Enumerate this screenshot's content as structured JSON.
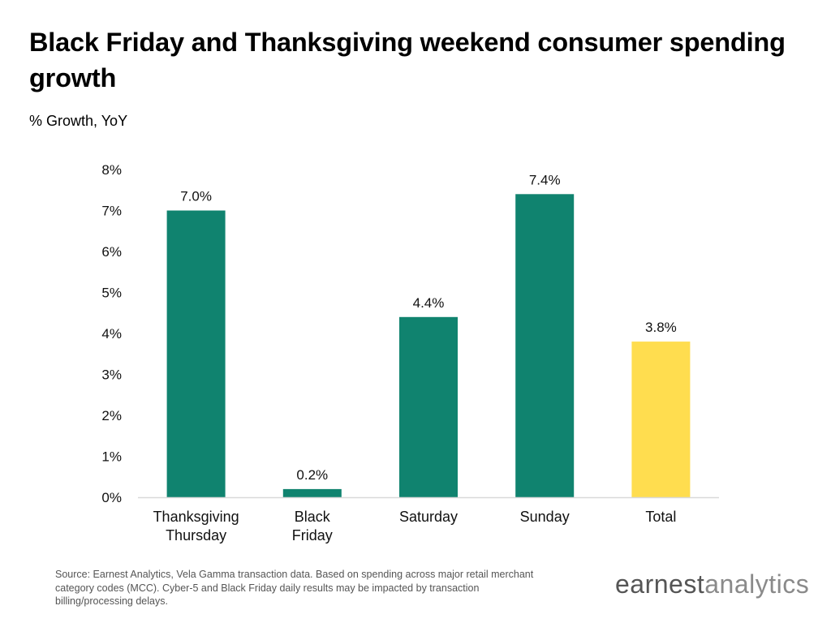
{
  "header": {
    "title": "Black Friday and Thanksgiving weekend consumer spending growth",
    "subtitle": "% Growth, YoY"
  },
  "chart_data": {
    "type": "bar",
    "title": "Black Friday and Thanksgiving weekend consumer spending growth",
    "ylabel": "% Growth, YoY",
    "xlabel": "",
    "categories": [
      "Thanksgiving Thursday",
      "Black Friday",
      "Saturday",
      "Sunday",
      "Total"
    ],
    "category_lines": [
      [
        "Thanksgiving",
        "Thursday"
      ],
      [
        "Black",
        "Friday"
      ],
      [
        "Saturday"
      ],
      [
        "Sunday"
      ],
      [
        "Total"
      ]
    ],
    "values": [
      7.0,
      0.2,
      4.4,
      7.4,
      3.8
    ],
    "value_labels": [
      "7.0%",
      "0.2%",
      "4.4%",
      "7.4%",
      "3.8%"
    ],
    "bar_colors": [
      "#10836f",
      "#10836f",
      "#10836f",
      "#10836f",
      "#ffdd4f"
    ],
    "ylim": [
      0,
      8
    ],
    "y_ticks": [
      0,
      1,
      2,
      3,
      4,
      5,
      6,
      7,
      8
    ],
    "y_tick_labels": [
      "0%",
      "1%",
      "2%",
      "3%",
      "4%",
      "5%",
      "6%",
      "7%",
      "8%"
    ],
    "grid": false,
    "legend": "none"
  },
  "footer": {
    "source": "Source: Earnest Analytics, Vela Gamma transaction data. Based on spending across major retail merchant category codes (MCC). Cyber-5 and Black Friday daily results may be impacted by transaction billing/processing delays.",
    "logo_bold": "earnest",
    "logo_light": "analytics"
  },
  "colors": {
    "primary_bar": "#10836f",
    "highlight_bar": "#ffdd4f",
    "axis": "#d9d9d9"
  }
}
